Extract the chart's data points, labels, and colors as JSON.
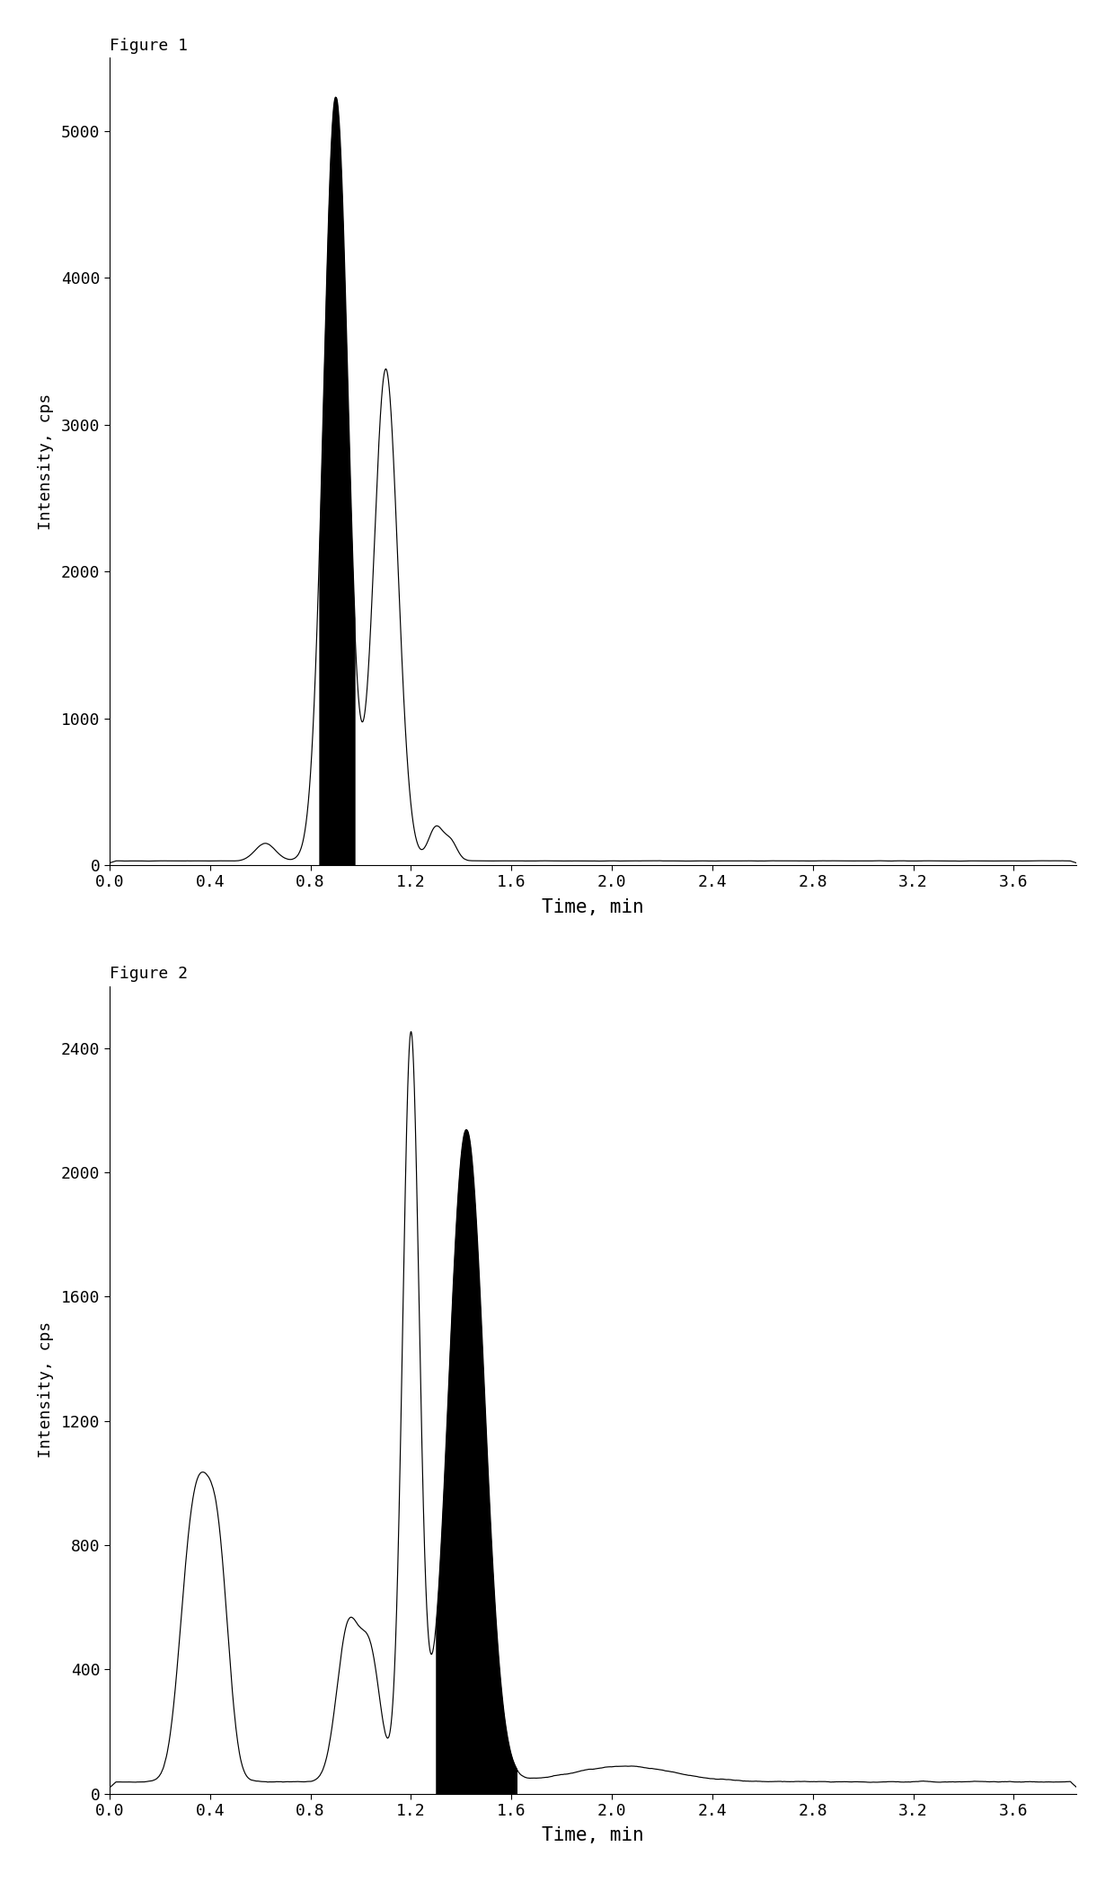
{
  "fig1_title": "Figure 1",
  "fig2_title": "Figure 2",
  "xlabel": "Time, min",
  "ylabel": "Intensity, cps",
  "fig1_ylim": [
    0,
    5500
  ],
  "fig1_yticks": [
    0,
    1000,
    2000,
    3000,
    4000,
    5000
  ],
  "fig2_ylim": [
    0,
    2600
  ],
  "fig2_yticks": [
    0,
    400,
    800,
    1200,
    1600,
    2000,
    2400
  ],
  "xlim": [
    0.0,
    3.85
  ],
  "xticks": [
    0.0,
    0.4,
    0.8,
    1.2,
    1.6,
    2.0,
    2.4,
    2.8,
    3.2,
    3.6
  ],
  "background_color": "#ffffff",
  "line_color": "#000000",
  "fill_color": "#000000"
}
